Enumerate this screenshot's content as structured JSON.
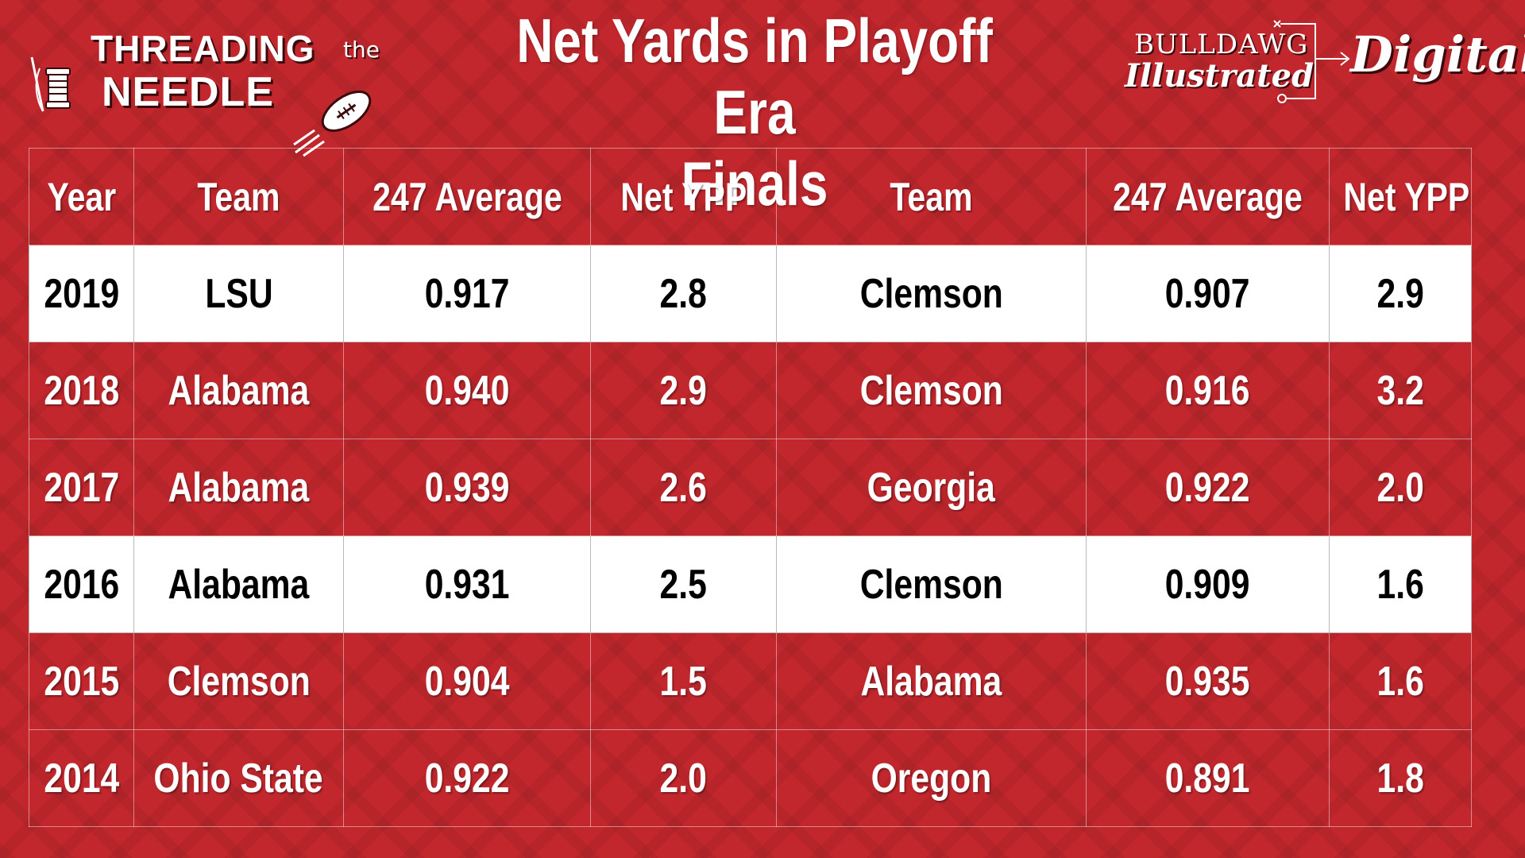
{
  "title": [
    "Net Yards in Playoff Era",
    "Finals"
  ],
  "logo_left": {
    "line1": "THREADING",
    "the": "the",
    "line2": "NEEDLE"
  },
  "logo_right": {
    "top": "BULLDAWG",
    "script": "Illustrated",
    "digital": "Digital"
  },
  "colors": {
    "background": "#c1272d",
    "highlight_row": "#ffffff",
    "text": "#ffffff"
  },
  "table": {
    "headers": [
      "Year",
      "Team",
      "247 Average",
      "Net YPP",
      "Team",
      "247 Average",
      "Net YPP"
    ],
    "rows": [
      {
        "cells": [
          "2019",
          "LSU",
          "0.917",
          "2.8",
          "Clemson",
          "0.907",
          "2.9"
        ],
        "highlight": true
      },
      {
        "cells": [
          "2018",
          "Alabama",
          "0.940",
          "2.9",
          "Clemson",
          "0.916",
          "3.2"
        ],
        "highlight": false
      },
      {
        "cells": [
          "2017",
          "Alabama",
          "0.939",
          "2.6",
          "Georgia",
          "0.922",
          "2.0"
        ],
        "highlight": false
      },
      {
        "cells": [
          "2016",
          "Alabama",
          "0.931",
          "2.5",
          "Clemson",
          "0.909",
          "1.6"
        ],
        "highlight": true
      },
      {
        "cells": [
          "2015",
          "Clemson",
          "0.904",
          "1.5",
          "Alabama",
          "0.935",
          "1.6"
        ],
        "highlight": false
      },
      {
        "cells": [
          "2014",
          "Ohio State",
          "0.922",
          "2.0",
          "Oregon",
          "0.891",
          "1.8"
        ],
        "highlight": false
      }
    ]
  }
}
